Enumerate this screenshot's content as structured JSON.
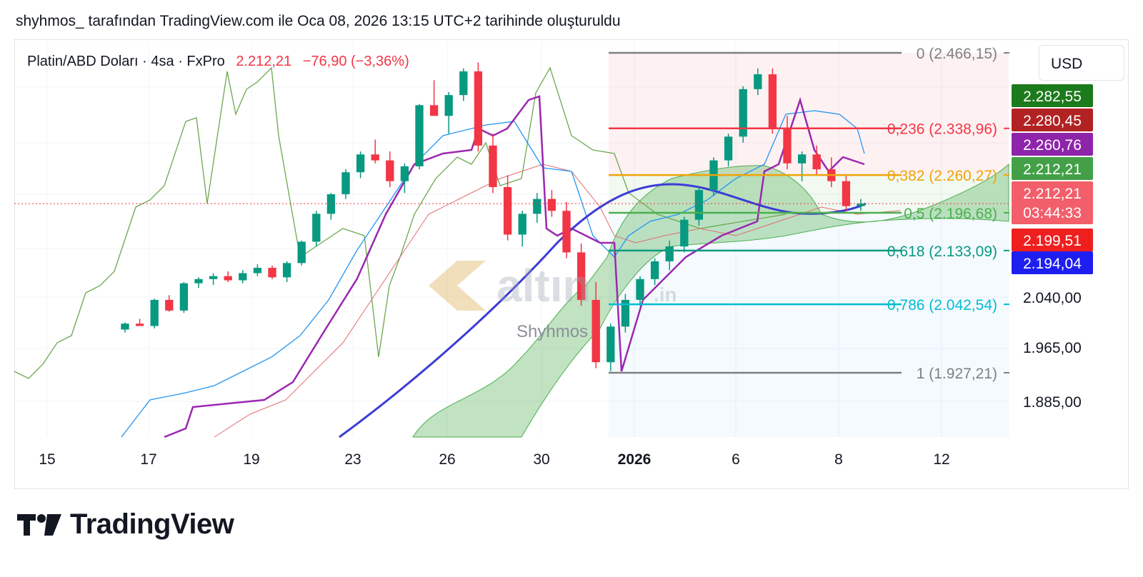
{
  "caption": "shyhmos_ tarafından TradingView.com ile Oca 08, 2026 13:15 UTC+2 tarihinde oluşturuldu",
  "legend": {
    "symbol": "Platin/ABD Doları · 4sa · FxPro",
    "price": "2.212,21",
    "change": "−76,90 (−3,36%)"
  },
  "currency": "USD",
  "watermark": {
    "user": "Shyhmos",
    "logo_text": "altın.in"
  },
  "brand": "TradingView",
  "colors": {
    "up": "#089981",
    "down": "#f23645",
    "fib_236": "#f23645",
    "fib_382": "#f0a30a",
    "fib_05": "#4caf50",
    "fib_618": "#089981",
    "fib_786": "#00bcd4",
    "fib_edge": "#808080",
    "ma": "#3c3cd6",
    "kijun": "#9c27b0",
    "tenkan": "#2196f3",
    "chikou": "#6aa84f"
  },
  "chart_data": {
    "type": "candlestick",
    "title": "Platin/ABD Doları · 4sa · FxPro",
    "x_ticks": [
      "15",
      "17",
      "19",
      "23",
      "26",
      "30",
      "2026",
      "6",
      "8",
      "12"
    ],
    "y_ticks": [
      "2.040,00",
      "1.965,00",
      "1.885,00"
    ],
    "last_price": 2212.21,
    "fibonacci": [
      {
        "level": "0",
        "value": "2.466,15"
      },
      {
        "level": "0,236",
        "value": "2.338,96"
      },
      {
        "level": "0,382",
        "value": "2.260,27"
      },
      {
        "level": "0,5",
        "value": "2.196,68"
      },
      {
        "level": "0,618",
        "value": "2.133,09"
      },
      {
        "level": "0,786",
        "value": "2.042,54"
      },
      {
        "level": "1",
        "value": "1.927,21"
      }
    ],
    "price_labels": [
      {
        "text": "2.282,55",
        "color": "#1b7a1b"
      },
      {
        "text": "2.280,45",
        "color": "#b22222"
      },
      {
        "text": "2.260,76",
        "color": "#8e24aa"
      },
      {
        "text": "2.212,21",
        "color": "#43a047"
      },
      {
        "text": "2.212,21",
        "sub": "03:44:33",
        "color": "#f25e6a"
      },
      {
        "text": "2.199,51",
        "color": "#ef1f1f"
      },
      {
        "text": "2.194,04",
        "color": "#1e1ef0"
      }
    ],
    "candles": [
      [
        2000,
        2012,
        1995,
        2010
      ],
      [
        2010,
        2018,
        2006,
        2006
      ],
      [
        2006,
        2052,
        2002,
        2050
      ],
      [
        2050,
        2058,
        2030,
        2032
      ],
      [
        2032,
        2080,
        2028,
        2078
      ],
      [
        2078,
        2088,
        2070,
        2085
      ],
      [
        2085,
        2095,
        2075,
        2090
      ],
      [
        2090,
        2098,
        2080,
        2083
      ],
      [
        2083,
        2100,
        2078,
        2095
      ],
      [
        2095,
        2110,
        2090,
        2104
      ],
      [
        2104,
        2108,
        2085,
        2088
      ],
      [
        2088,
        2115,
        2080,
        2112
      ],
      [
        2112,
        2150,
        2108,
        2148
      ],
      [
        2148,
        2200,
        2140,
        2195
      ],
      [
        2195,
        2230,
        2185,
        2228
      ],
      [
        2228,
        2270,
        2220,
        2265
      ],
      [
        2265,
        2300,
        2255,
        2295
      ],
      [
        2295,
        2320,
        2280,
        2285
      ],
      [
        2285,
        2300,
        2240,
        2250
      ],
      [
        2250,
        2280,
        2230,
        2275
      ],
      [
        2275,
        2380,
        2270,
        2378
      ],
      [
        2378,
        2420,
        2360,
        2360
      ],
      [
        2360,
        2400,
        2330,
        2395
      ],
      [
        2395,
        2440,
        2385,
        2435
      ],
      [
        2435,
        2450,
        2300,
        2310
      ],
      [
        2310,
        2330,
        2230,
        2240
      ],
      [
        2240,
        2260,
        2150,
        2160
      ],
      [
        2160,
        2200,
        2140,
        2195
      ],
      [
        2195,
        2230,
        2180,
        2220
      ],
      [
        2220,
        2235,
        2190,
        2200
      ],
      [
        2200,
        2215,
        2120,
        2130
      ],
      [
        2130,
        2145,
        2040,
        2050
      ],
      [
        2050,
        2080,
        1935,
        1945
      ],
      [
        1945,
        2010,
        1930,
        2005
      ],
      [
        2005,
        2060,
        1995,
        2050
      ],
      [
        2050,
        2090,
        2040,
        2085
      ],
      [
        2085,
        2120,
        2075,
        2115
      ],
      [
        2115,
        2150,
        2100,
        2140
      ],
      [
        2140,
        2190,
        2130,
        2185
      ],
      [
        2185,
        2240,
        2175,
        2235
      ],
      [
        2235,
        2290,
        2225,
        2285
      ],
      [
        2285,
        2330,
        2275,
        2325
      ],
      [
        2325,
        2410,
        2315,
        2405
      ],
      [
        2405,
        2440,
        2395,
        2430
      ],
      [
        2430,
        2440,
        2330,
        2340
      ],
      [
        2340,
        2360,
        2270,
        2280
      ],
      [
        2280,
        2300,
        2250,
        2295
      ],
      [
        2295,
        2310,
        2260,
        2270
      ],
      [
        2270,
        2290,
        2240,
        2250
      ],
      [
        2250,
        2260,
        2200,
        2208
      ],
      [
        2208,
        2220,
        2200,
        2212
      ]
    ]
  }
}
